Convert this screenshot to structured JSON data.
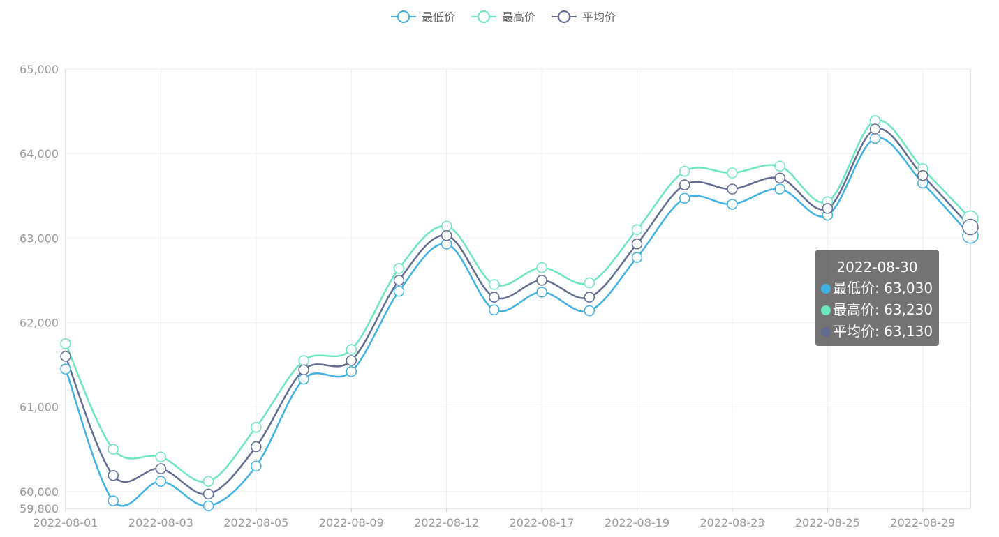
{
  "legend": {
    "items": [
      {
        "name": "最低价",
        "color": "#3fb1e3"
      },
      {
        "name": "最高价",
        "color": "#6be6c1"
      },
      {
        "name": "平均价",
        "color": "#626c91"
      }
    ]
  },
  "tooltip": {
    "title": "2022-08-30",
    "rows": [
      {
        "label": "最低价: 63,030",
        "color": "#3fb1e3"
      },
      {
        "label": "最高价: 63,230",
        "color": "#6be6c1"
      },
      {
        "label": "平均价: 63,130",
        "color": "#626c91"
      }
    ]
  },
  "chart_data": {
    "type": "line",
    "smooth": true,
    "x": [
      "2022-08-01",
      "2022-08-02",
      "2022-08-03",
      "2022-08-04",
      "2022-08-05",
      "2022-08-08",
      "2022-08-09",
      "2022-08-10",
      "2022-08-12",
      "2022-08-15",
      "2022-08-17",
      "2022-08-18",
      "2022-08-19",
      "2022-08-22",
      "2022-08-23",
      "2022-08-24",
      "2022-08-25",
      "2022-08-26",
      "2022-08-29",
      "2022-08-30"
    ],
    "x_tick_labels": [
      "2022-08-01",
      "2022-08-03",
      "2022-08-05",
      "2022-08-09",
      "2022-08-12",
      "2022-08-17",
      "2022-08-19",
      "2022-08-23",
      "2022-08-25",
      "2022-08-29"
    ],
    "y_tick_labels": [
      "65,000",
      "64,000",
      "63,000",
      "62,000",
      "61,000",
      "60,000",
      "59,800"
    ],
    "ylim": [
      59800,
      65000
    ],
    "grid": true,
    "legend_position": "top-center",
    "highlighted_index": 19,
    "series": [
      {
        "name": "最低价",
        "color": "#3fb1e3",
        "values": [
          61450,
          59890,
          60120,
          59830,
          60300,
          61330,
          61420,
          62370,
          62930,
          62150,
          62360,
          62140,
          62770,
          63470,
          63400,
          63580,
          63270,
          64180,
          63650,
          63030
        ]
      },
      {
        "name": "最高价",
        "color": "#6be6c1",
        "values": [
          61750,
          60500,
          60410,
          60120,
          60760,
          61550,
          61680,
          62640,
          63140,
          62450,
          62650,
          62470,
          63100,
          63790,
          63770,
          63850,
          63430,
          64390,
          63820,
          63230
        ]
      },
      {
        "name": "平均价",
        "color": "#626c91",
        "values": [
          61600,
          60190,
          60270,
          59970,
          60530,
          61440,
          61550,
          62500,
          63030,
          62300,
          62500,
          62300,
          62930,
          63630,
          63580,
          63710,
          63350,
          64290,
          63740,
          63130
        ]
      }
    ]
  }
}
